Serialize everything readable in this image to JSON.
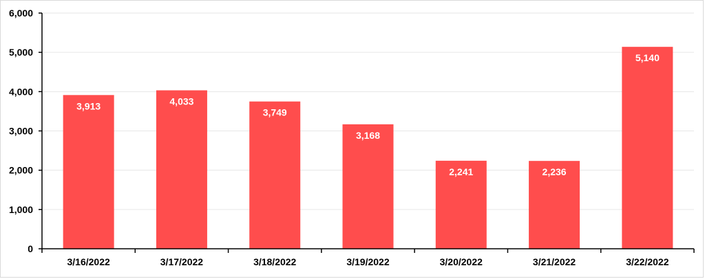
{
  "chart_data": {
    "type": "bar",
    "categories": [
      "3/16/2022",
      "3/17/2022",
      "3/18/2022",
      "3/19/2022",
      "3/20/2022",
      "3/21/2022",
      "3/22/2022"
    ],
    "values": [
      3913,
      4033,
      3749,
      3168,
      2241,
      2236,
      5140
    ],
    "value_labels": [
      "3,913",
      "4,033",
      "3,749",
      "3,168",
      "2,241",
      "2,236",
      "5,140"
    ],
    "y_ticks": [
      0,
      1000,
      2000,
      3000,
      4000,
      5000,
      6000
    ],
    "y_tick_labels": [
      "0",
      "1,000",
      "2,000",
      "3,000",
      "4,000",
      "5,000",
      "6,000"
    ],
    "ylim": [
      0,
      6000
    ],
    "grid": true,
    "legend": "none",
    "bar_color": "#ff4d4d",
    "label_color": "#ffffff",
    "title": "",
    "xlabel": "",
    "ylabel": ""
  }
}
